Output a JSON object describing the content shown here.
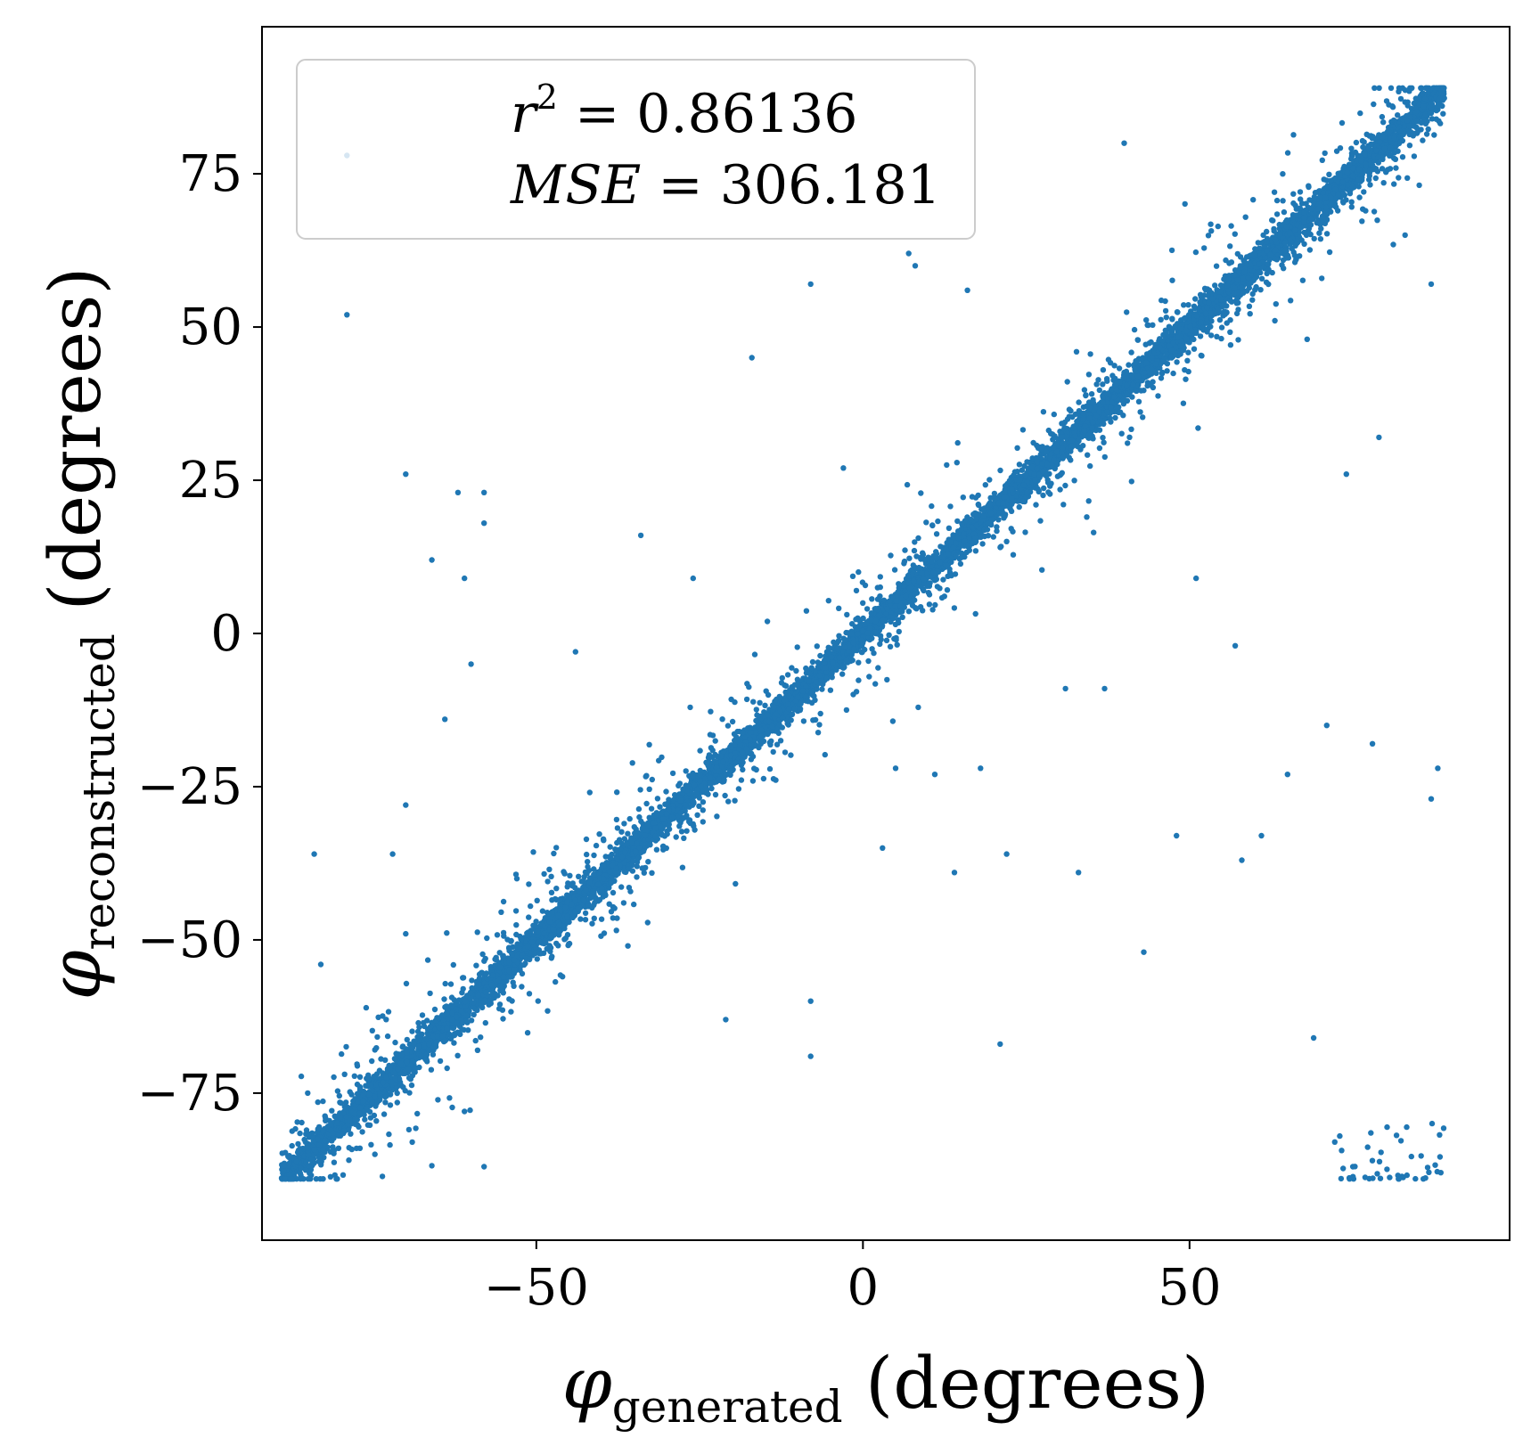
{
  "chart_data": {
    "type": "scatter",
    "x_ticks": [
      "−50",
      "0",
      "50"
    ],
    "y_ticks": [
      "−75",
      "−50",
      "−25",
      "0",
      "25",
      "50",
      "75"
    ],
    "x_tick_values": [
      -50,
      0,
      50
    ],
    "y_tick_values": [
      -75,
      -50,
      -25,
      0,
      25,
      50,
      75
    ],
    "xlim": [
      -92,
      99
    ],
    "ylim": [
      -99,
      99
    ],
    "xlabel": {
      "symbol": "φ",
      "subscript": "generated",
      "suffix": " (degrees)"
    },
    "ylabel": {
      "symbol": "φ",
      "subscript": "reconstructed",
      "suffix": " (degrees)"
    },
    "legend": {
      "placement": "top-left",
      "line1": {
        "var": "r",
        "sup": "2",
        "rest": " = 0.86136"
      },
      "line2": {
        "var": "MSE",
        "rest": " = 306.181"
      }
    },
    "series": [
      {
        "color": "#1f77b4",
        "n_points": 9000,
        "trend": {
          "slope": 1.0,
          "intercept": 0.0
        },
        "x_range": [
          -89,
          89
        ],
        "y_range": [
          -89,
          89
        ],
        "outliers": [
          [
            -79,
            78
          ],
          [
            -79,
            52
          ],
          [
            -70,
            26
          ],
          [
            -66,
            12
          ],
          [
            -62,
            23
          ],
          [
            -58,
            23
          ],
          [
            -58,
            18
          ],
          [
            -61,
            9
          ],
          [
            -64,
            -14
          ],
          [
            -70,
            -28
          ],
          [
            -72,
            -36
          ],
          [
            -84,
            -36
          ],
          [
            -83,
            -54
          ],
          [
            -60,
            -5
          ],
          [
            -44,
            -3
          ],
          [
            -34,
            16
          ],
          [
            -26,
            9
          ],
          [
            -8,
            57
          ],
          [
            -17,
            45
          ],
          [
            -8,
            -69
          ],
          [
            -21,
            -63
          ],
          [
            -8,
            -60
          ],
          [
            3,
            -35
          ],
          [
            14,
            -39
          ],
          [
            22,
            -36
          ],
          [
            21,
            -67
          ],
          [
            33,
            -39
          ],
          [
            43,
            -52
          ],
          [
            48,
            -33
          ],
          [
            58,
            -37
          ],
          [
            61,
            -33
          ],
          [
            65,
            -23
          ],
          [
            71,
            -15
          ],
          [
            78,
            -18
          ],
          [
            87,
            -27
          ],
          [
            88,
            -22
          ],
          [
            69,
            -66
          ],
          [
            73,
            -82
          ],
          [
            75,
            -87
          ],
          [
            57,
            -2
          ],
          [
            37,
            -9
          ],
          [
            31,
            -9
          ],
          [
            18,
            -22
          ],
          [
            11,
            -23
          ],
          [
            5,
            -22
          ],
          [
            -3,
            27
          ],
          [
            7,
            62
          ],
          [
            8,
            60
          ],
          [
            16,
            56
          ],
          [
            40,
            80
          ],
          [
            63,
            72
          ],
          [
            79,
            32
          ],
          [
            74,
            26
          ],
          [
            87,
            57
          ],
          [
            83,
            65
          ],
          [
            59,
            58
          ],
          [
            68,
            48
          ],
          [
            51,
            9
          ],
          [
            22,
            15
          ],
          [
            13,
            13
          ],
          [
            -46,
            -56
          ],
          [
            -58,
            -87
          ],
          [
            -77,
            -84
          ],
          [
            -69,
            -83
          ],
          [
            -77,
            -74
          ],
          [
            -85,
            -75
          ],
          [
            -61,
            -78
          ],
          [
            -59,
            -68
          ],
          [
            -70,
            -49
          ]
        ],
        "corner_cluster": {
          "x_range": [
            72,
            89
          ],
          "y_range": [
            -89,
            -79
          ],
          "count": 45
        }
      }
    ]
  }
}
